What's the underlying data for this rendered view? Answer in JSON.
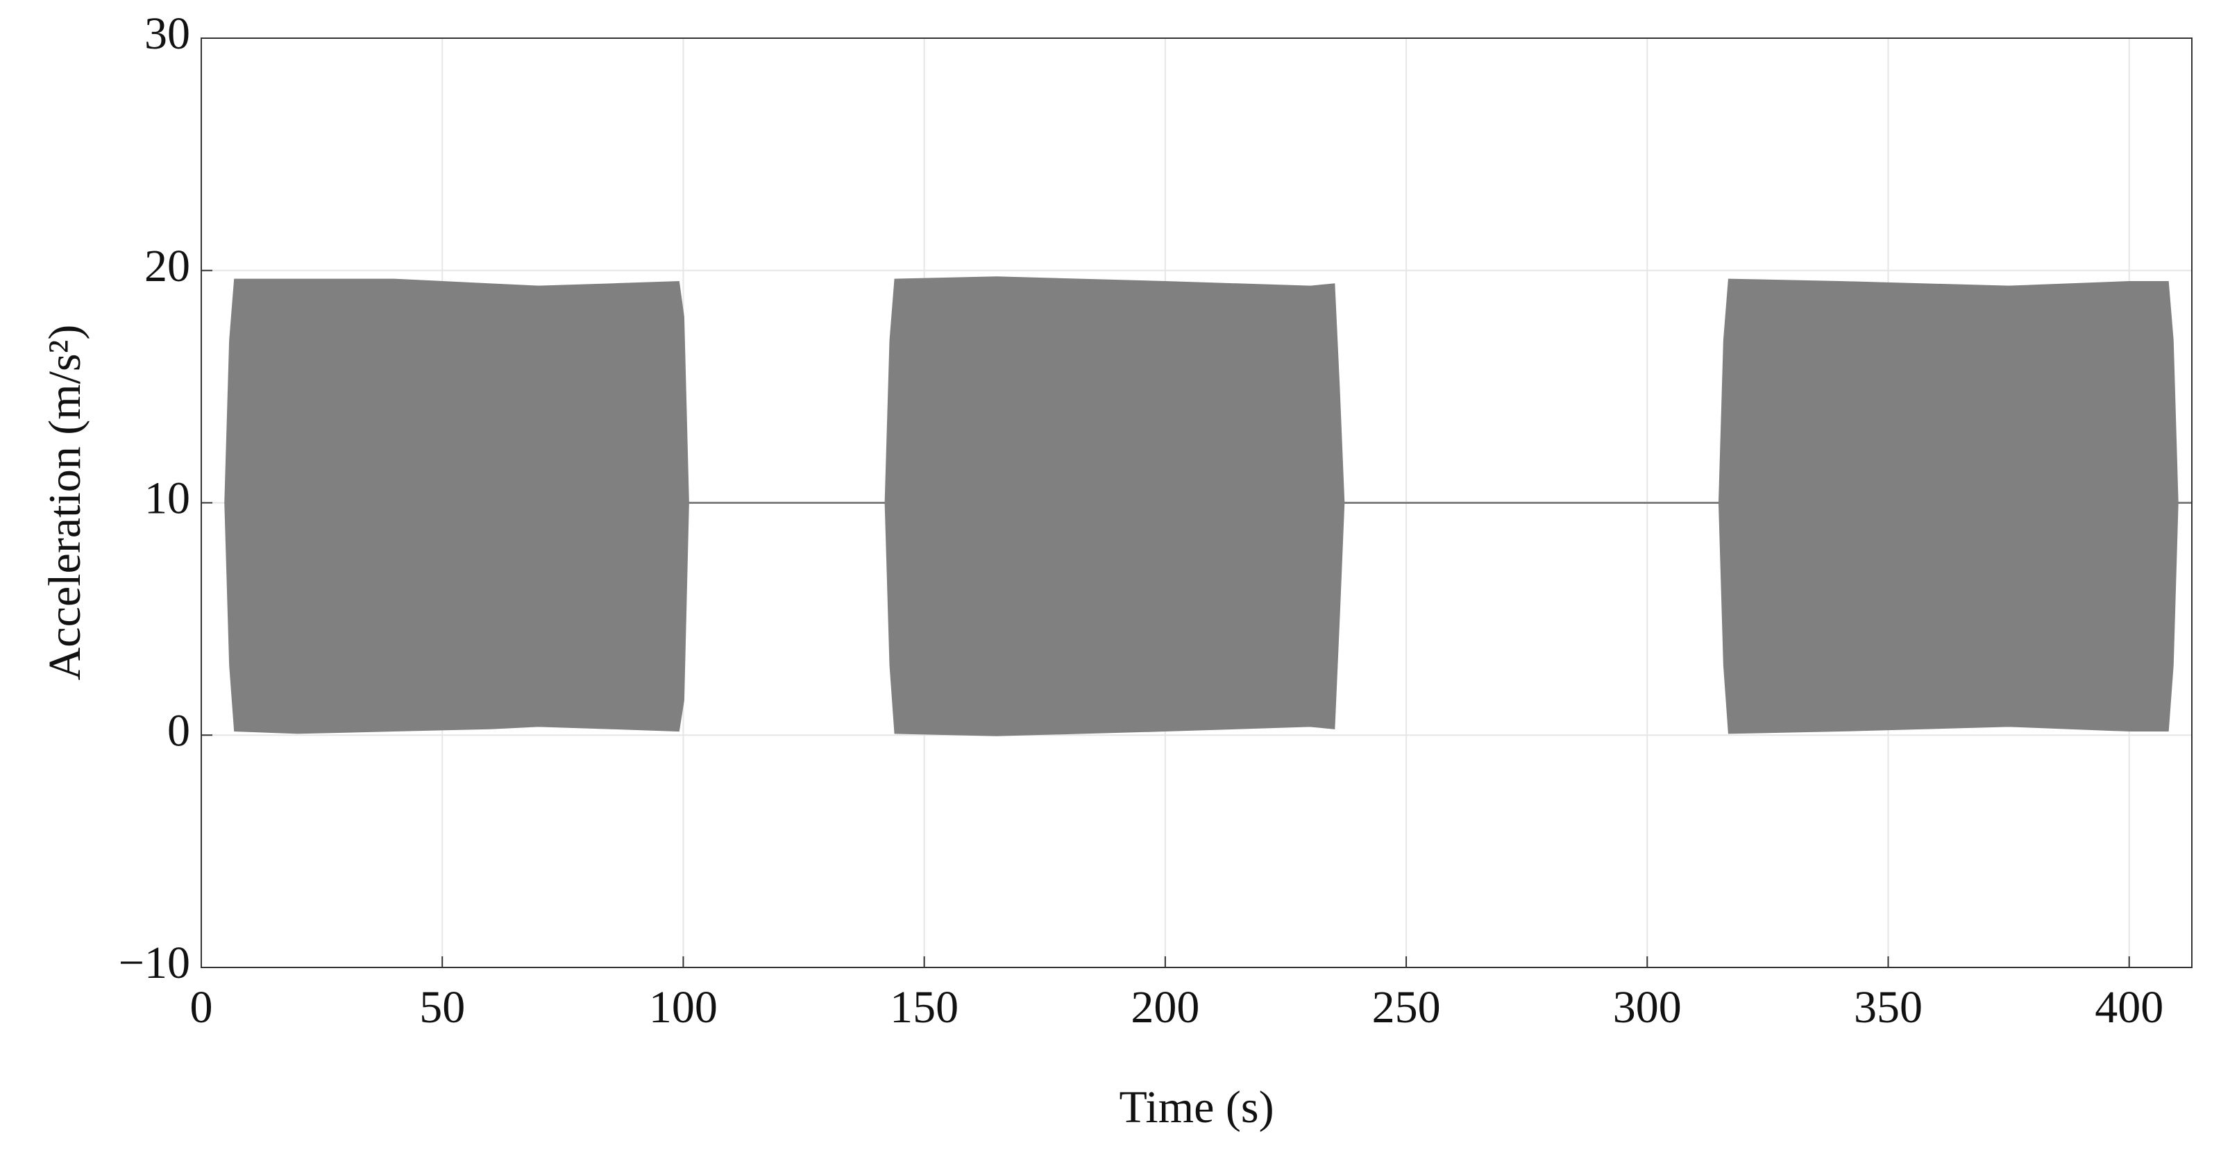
{
  "chart_data": {
    "type": "band",
    "xlabel": "Time (s)",
    "ylabel": "Acceleration (m/s²)",
    "x": [
      5,
      6,
      7,
      20,
      40,
      60,
      70,
      85,
      99,
      100,
      101,
      142,
      143,
      144,
      165,
      200,
      230,
      235,
      236,
      237,
      315,
      316,
      317,
      340,
      375,
      400,
      408,
      409,
      410,
      413
    ],
    "series": [
      {
        "color": "#808080",
        "values": [
          10,
          17,
          19.6,
          19.6,
          19.6,
          19.4,
          19.3,
          19.4,
          19.5,
          18,
          10,
          10,
          17,
          19.6,
          19.7,
          19.5,
          19.3,
          19.4,
          15,
          10,
          10,
          17,
          19.6,
          19.5,
          19.3,
          19.5,
          19.5,
          17,
          10,
          10
        ]
      },
      {
        "color": "#808080",
        "values": [
          10,
          3,
          0.2,
          0.1,
          0.2,
          0.3,
          0.4,
          0.3,
          0.2,
          1.5,
          10,
          10,
          3,
          0.1,
          0,
          0.2,
          0.4,
          0.3,
          5,
          10,
          10,
          3,
          0.1,
          0.2,
          0.4,
          0.2,
          0.2,
          3,
          10,
          10
        ]
      }
    ],
    "xlim": [
      0,
      413
    ],
    "ylim": [
      -10,
      30
    ],
    "xticks": [
      0,
      50,
      100,
      150,
      200,
      250,
      300,
      350,
      400
    ],
    "yticks": [
      {
        "value": -10,
        "label": "−10"
      },
      0,
      10,
      20,
      30
    ],
    "grid": true
  }
}
